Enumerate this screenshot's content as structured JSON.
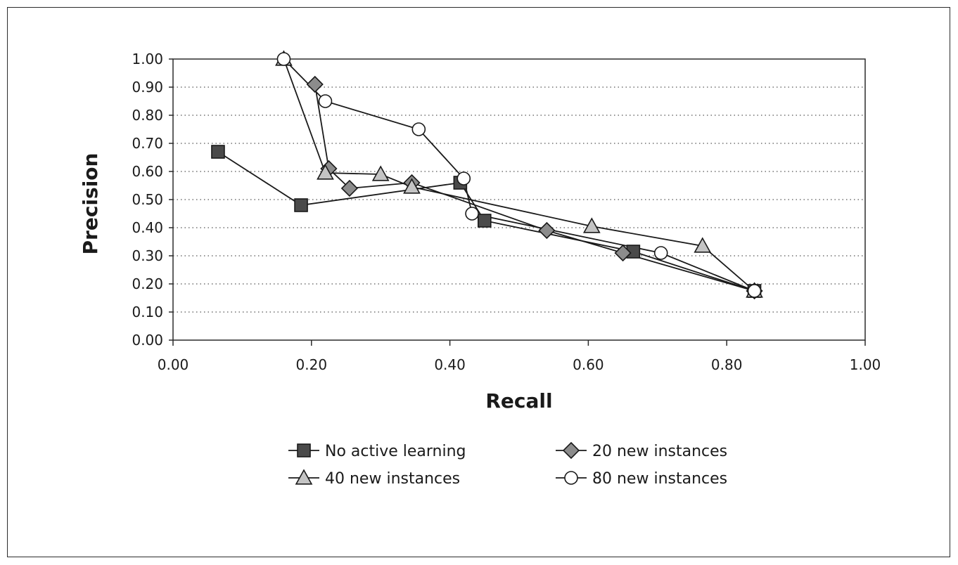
{
  "chart_data": {
    "type": "line",
    "title": "",
    "xlabel": "Recall",
    "ylabel": "Precision",
    "xlim": [
      0,
      1
    ],
    "ylim": [
      0,
      1
    ],
    "x_ticks": [
      "0.00",
      "0.20",
      "0.40",
      "0.60",
      "0.80",
      "1.00"
    ],
    "y_ticks": [
      "0.00",
      "0.10",
      "0.20",
      "0.30",
      "0.40",
      "0.50",
      "0.60",
      "0.70",
      "0.80",
      "0.90",
      "1.00"
    ],
    "grid": "horizontal-dotted",
    "legend_position": "bottom",
    "series": [
      {
        "name": "No active learning",
        "marker": "square",
        "fill": "#4a4a4a",
        "points": [
          [
            0.065,
            0.67
          ],
          [
            0.185,
            0.48
          ],
          [
            0.415,
            0.56
          ],
          [
            0.45,
            0.425
          ],
          [
            0.665,
            0.315
          ],
          [
            0.84,
            0.175
          ]
        ]
      },
      {
        "name": "20 new instances",
        "marker": "diamond",
        "fill": "#8c8c8c",
        "points": [
          [
            0.205,
            0.91
          ],
          [
            0.225,
            0.61
          ],
          [
            0.255,
            0.54
          ],
          [
            0.345,
            0.56
          ],
          [
            0.54,
            0.39
          ],
          [
            0.65,
            0.31
          ],
          [
            0.84,
            0.175
          ]
        ]
      },
      {
        "name": "40 new instances",
        "marker": "triangle",
        "fill": "#c4c4c4",
        "points": [
          [
            0.16,
            1.0
          ],
          [
            0.22,
            0.595
          ],
          [
            0.3,
            0.59
          ],
          [
            0.345,
            0.545
          ],
          [
            0.605,
            0.405
          ],
          [
            0.765,
            0.335
          ],
          [
            0.84,
            0.175
          ]
        ]
      },
      {
        "name": "80 new instances",
        "marker": "circle",
        "fill": "#ffffff",
        "points": [
          [
            0.16,
            1.0
          ],
          [
            0.22,
            0.85
          ],
          [
            0.355,
            0.75
          ],
          [
            0.42,
            0.575
          ],
          [
            0.432,
            0.45
          ],
          [
            0.705,
            0.31
          ],
          [
            0.84,
            0.175
          ]
        ]
      }
    ]
  }
}
